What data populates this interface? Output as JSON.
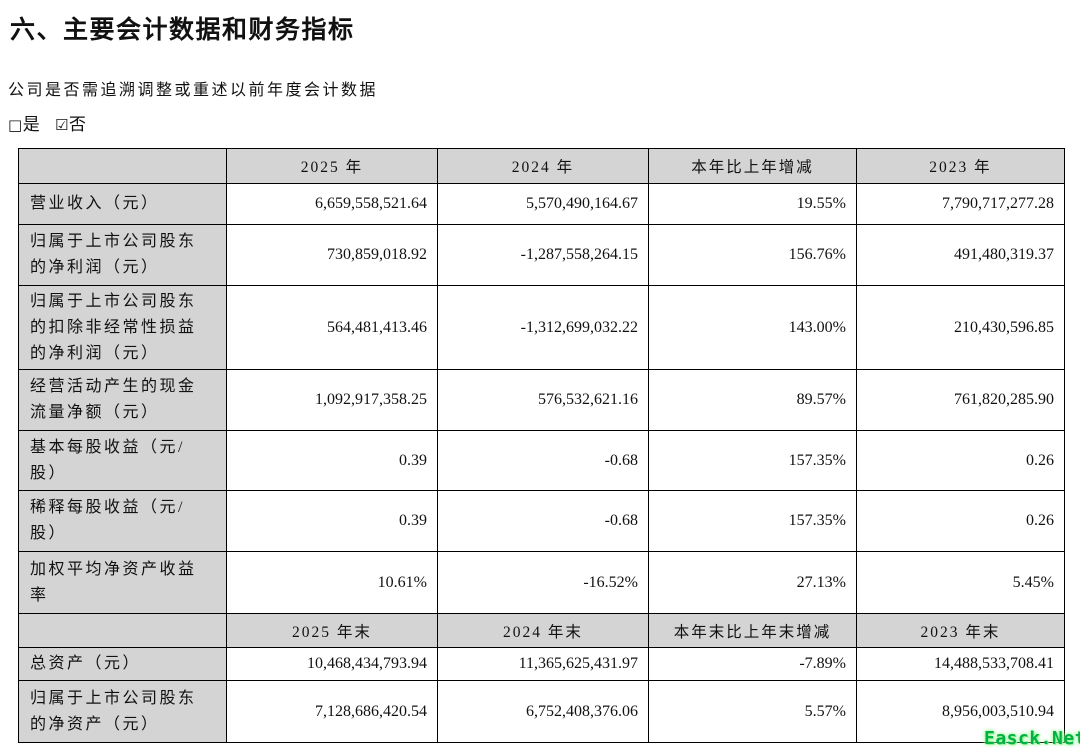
{
  "page": {
    "title": "六、主要会计数据和财务指标",
    "restatement_question": "公司是否需追溯调整或重述以前年度会计数据",
    "checkbox_options": [
      {
        "glyph": "□",
        "label": "是"
      },
      {
        "glyph": "☑",
        "label": "否"
      }
    ]
  },
  "table": {
    "sections": [
      {
        "header": [
          "",
          "2025 年",
          "2024 年",
          "本年比上年增减",
          "2023 年"
        ],
        "rows": [
          {
            "label": "营业收入（元）",
            "values": [
              "6,659,558,521.64",
              "5,570,490,164.67",
              "19.55%",
              "7,790,717,277.28"
            ]
          },
          {
            "label": "归属于上市公司股东的净利润（元）",
            "values": [
              "730,859,018.92",
              "-1,287,558,264.15",
              "156.76%",
              "491,480,319.37"
            ]
          },
          {
            "label": "归属于上市公司股东的扣除非经常性损益的净利润（元）",
            "values": [
              "564,481,413.46",
              "-1,312,699,032.22",
              "143.00%",
              "210,430,596.85"
            ]
          },
          {
            "label": "经营活动产生的现金流量净额（元）",
            "values": [
              "1,092,917,358.25",
              "576,532,621.16",
              "89.57%",
              "761,820,285.90"
            ]
          },
          {
            "label": "基本每股收益（元/股）",
            "values": [
              "0.39",
              "-0.68",
              "157.35%",
              "0.26"
            ]
          },
          {
            "label": "稀释每股收益（元/股）",
            "values": [
              "0.39",
              "-0.68",
              "157.35%",
              "0.26"
            ]
          },
          {
            "label": "加权平均净资产收益率",
            "values": [
              "10.61%",
              "-16.52%",
              "27.13%",
              "5.45%"
            ]
          }
        ]
      },
      {
        "header": [
          "",
          "2025 年末",
          "2024 年末",
          "本年末比上年末增减",
          "2023 年末"
        ],
        "rows": [
          {
            "label": "总资产（元）",
            "values": [
              "10,468,434,793.94",
              "11,365,625,431.97",
              "-7.89%",
              "14,488,533,708.41"
            ]
          },
          {
            "label": "归属于上市公司股东的净资产（元）",
            "values": [
              "7,128,686,420.54",
              "6,752,408,376.06",
              "5.57%",
              "8,956,003,510.94"
            ]
          }
        ]
      }
    ]
  },
  "watermark": {
    "text": "Easck.Net"
  },
  "colors": {
    "header_bg": "#d4d4d4",
    "border": "#000000",
    "watermark_green": "#00b244"
  }
}
